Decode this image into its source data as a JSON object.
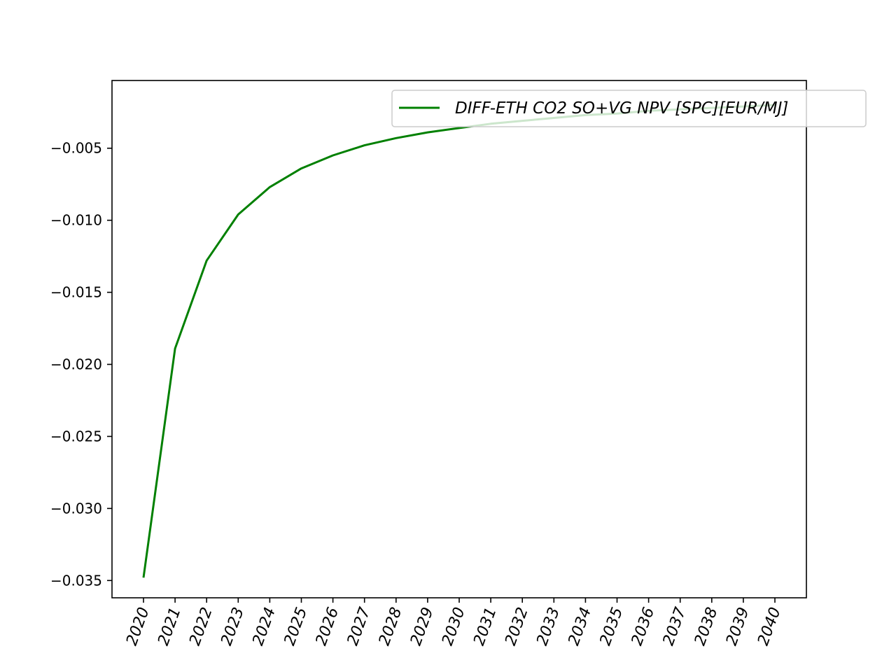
{
  "chart_data": {
    "type": "line",
    "title": "",
    "xlabel": "",
    "ylabel": "",
    "x": [
      "2020",
      "2021",
      "2022",
      "2023",
      "2024",
      "2025",
      "2026",
      "2027",
      "2028",
      "2029",
      "2030",
      "2031",
      "2032",
      "2033",
      "2034",
      "2035",
      "2036",
      "2037",
      "2038",
      "2039",
      "2040"
    ],
    "series": [
      {
        "name": "DIFF-ETH CO2 SO+VG NPV [SPC][EUR/MJ]",
        "color": "#008000",
        "values": [
          -0.0348,
          -0.0189,
          -0.0128,
          -0.0096,
          -0.0077,
          -0.0064,
          -0.0055,
          -0.0048,
          -0.0043,
          -0.0039,
          -0.0036,
          -0.0033,
          -0.0031,
          -0.0029,
          -0.0027,
          -0.0026,
          -0.0024,
          -0.0023,
          -0.0022,
          -0.0021,
          -0.002
        ]
      }
    ],
    "ylim": [
      -0.0362,
      -0.0003
    ],
    "yticks": [
      -0.035,
      -0.03,
      -0.025,
      -0.02,
      -0.015,
      -0.01,
      -0.005
    ],
    "ytick_labels": [
      "−0.035",
      "−0.030",
      "−0.025",
      "−0.020",
      "−0.015",
      "−0.010",
      "−0.005"
    ],
    "grid": false,
    "legend_position": "top-right",
    "xtick_rotation": "70 degrees"
  }
}
